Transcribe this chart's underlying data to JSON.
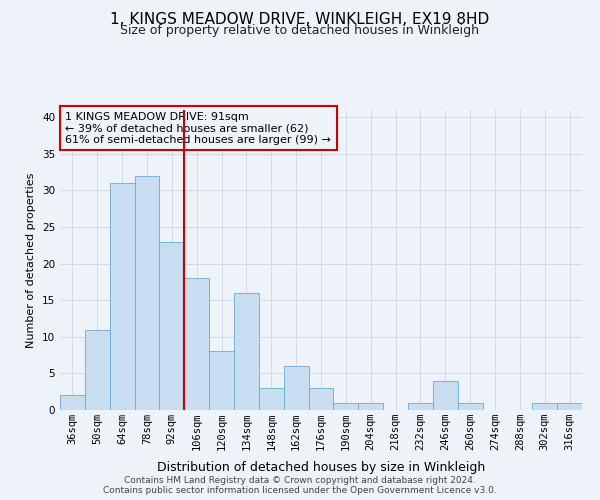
{
  "title": "1, KINGS MEADOW DRIVE, WINKLEIGH, EX19 8HD",
  "subtitle": "Size of property relative to detached houses in Winkleigh",
  "xlabel": "Distribution of detached houses by size in Winkleigh",
  "ylabel": "Number of detached properties",
  "bin_labels": [
    "36sqm",
    "50sqm",
    "64sqm",
    "78sqm",
    "92sqm",
    "106sqm",
    "120sqm",
    "134sqm",
    "148sqm",
    "162sqm",
    "176sqm",
    "190sqm",
    "204sqm",
    "218sqm",
    "232sqm",
    "246sqm",
    "260sqm",
    "274sqm",
    "288sqm",
    "302sqm",
    "316sqm"
  ],
  "bar_values": [
    2,
    11,
    31,
    32,
    23,
    18,
    8,
    16,
    3,
    6,
    3,
    1,
    1,
    0,
    1,
    4,
    1,
    0,
    0,
    1,
    1
  ],
  "bar_color": "#c9ddf0",
  "bar_edge_color": "#6aaad4",
  "vline_x_index": 4,
  "vline_color": "#cc0000",
  "annotation_text": "1 KINGS MEADOW DRIVE: 91sqm\n← 39% of detached houses are smaller (62)\n61% of semi-detached houses are larger (99) →",
  "annotation_box_edge_color": "#cc0000",
  "ylim": [
    0,
    41
  ],
  "yticks": [
    0,
    5,
    10,
    15,
    20,
    25,
    30,
    35,
    40
  ],
  "grid_color": "#d0d9e8",
  "footer1": "Contains HM Land Registry data © Crown copyright and database right 2024.",
  "footer2": "Contains public sector information licensed under the Open Government Licence v3.0.",
  "bg_color": "#eef2f9",
  "title_fontsize": 11,
  "subtitle_fontsize": 9,
  "annotation_fontsize": 8,
  "ylabel_fontsize": 8,
  "xlabel_fontsize": 9,
  "tick_fontsize": 7.5,
  "footer_fontsize": 6.5
}
